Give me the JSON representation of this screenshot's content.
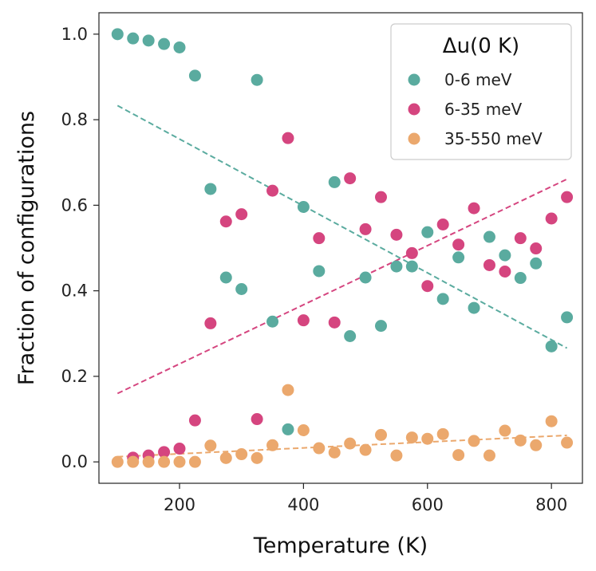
{
  "chart_data": {
    "type": "scatter",
    "xlabel": "Temperature (K)",
    "ylabel": "Fraction of configurations",
    "xlim": [
      70,
      850
    ],
    "ylim": [
      -0.05,
      1.05
    ],
    "xticks": [
      200,
      400,
      600,
      800
    ],
    "yticks": [
      "0.0",
      "0.2",
      "0.4",
      "0.6",
      "0.8",
      "1.0"
    ],
    "legend": {
      "title": "Δu(0 K)",
      "position": "top-right"
    },
    "series": [
      {
        "name": "0-6 meV",
        "color": "#5aab9f",
        "points": [
          [
            100,
            1.0
          ],
          [
            125,
            0.99
          ],
          [
            150,
            0.985
          ],
          [
            175,
            0.977
          ],
          [
            200,
            0.969
          ],
          [
            225,
            0.903
          ],
          [
            250,
            0.638
          ],
          [
            275,
            0.431
          ],
          [
            300,
            0.404
          ],
          [
            325,
            0.893
          ],
          [
            350,
            0.328
          ],
          [
            375,
            0.076
          ],
          [
            400,
            0.596
          ],
          [
            425,
            0.446
          ],
          [
            450,
            0.654
          ],
          [
            475,
            0.294
          ],
          [
            500,
            0.431
          ],
          [
            525,
            0.318
          ],
          [
            550,
            0.457
          ],
          [
            575,
            0.457
          ],
          [
            600,
            0.537
          ],
          [
            625,
            0.381
          ],
          [
            650,
            0.478
          ],
          [
            675,
            0.36
          ],
          [
            700,
            0.526
          ],
          [
            725,
            0.483
          ],
          [
            750,
            0.43
          ],
          [
            775,
            0.464
          ],
          [
            800,
            0.27
          ],
          [
            825,
            0.338
          ]
        ],
        "trend": [
          [
            100,
            0.833
          ],
          [
            825,
            0.266
          ]
        ]
      },
      {
        "name": "6-35 meV",
        "color": "#d5457f",
        "points": [
          [
            125,
            0.01
          ],
          [
            150,
            0.015
          ],
          [
            175,
            0.023
          ],
          [
            200,
            0.031
          ],
          [
            225,
            0.097
          ],
          [
            250,
            0.324
          ],
          [
            275,
            0.562
          ],
          [
            300,
            0.579
          ],
          [
            325,
            0.1
          ],
          [
            350,
            0.634
          ],
          [
            375,
            0.757
          ],
          [
            400,
            0.331
          ],
          [
            425,
            0.523
          ],
          [
            450,
            0.326
          ],
          [
            475,
            0.663
          ],
          [
            500,
            0.544
          ],
          [
            525,
            0.619
          ],
          [
            550,
            0.531
          ],
          [
            575,
            0.488
          ],
          [
            600,
            0.411
          ],
          [
            625,
            0.555
          ],
          [
            650,
            0.508
          ],
          [
            675,
            0.593
          ],
          [
            700,
            0.46
          ],
          [
            725,
            0.445
          ],
          [
            750,
            0.523
          ],
          [
            775,
            0.499
          ],
          [
            800,
            0.569
          ],
          [
            825,
            0.619
          ]
        ],
        "trend": [
          [
            100,
            0.16
          ],
          [
            825,
            0.661
          ]
        ]
      },
      {
        "name": "35-550 meV",
        "color": "#eba86d",
        "points": [
          [
            100,
            0.0
          ],
          [
            125,
            0.0
          ],
          [
            150,
            0.0
          ],
          [
            175,
            0.0
          ],
          [
            200,
            0.0
          ],
          [
            225,
            0.0
          ],
          [
            250,
            0.038
          ],
          [
            275,
            0.009
          ],
          [
            300,
            0.018
          ],
          [
            325,
            0.009
          ],
          [
            350,
            0.039
          ],
          [
            375,
            0.168
          ],
          [
            400,
            0.074
          ],
          [
            425,
            0.032
          ],
          [
            450,
            0.022
          ],
          [
            475,
            0.043
          ],
          [
            500,
            0.028
          ],
          [
            525,
            0.063
          ],
          [
            550,
            0.015
          ],
          [
            575,
            0.057
          ],
          [
            600,
            0.054
          ],
          [
            625,
            0.065
          ],
          [
            650,
            0.016
          ],
          [
            675,
            0.049
          ],
          [
            700,
            0.015
          ],
          [
            725,
            0.073
          ],
          [
            750,
            0.05
          ],
          [
            775,
            0.039
          ],
          [
            800,
            0.095
          ],
          [
            825,
            0.045
          ]
        ],
        "trend": [
          [
            100,
            0.012
          ],
          [
            825,
            0.062
          ]
        ]
      }
    ]
  }
}
